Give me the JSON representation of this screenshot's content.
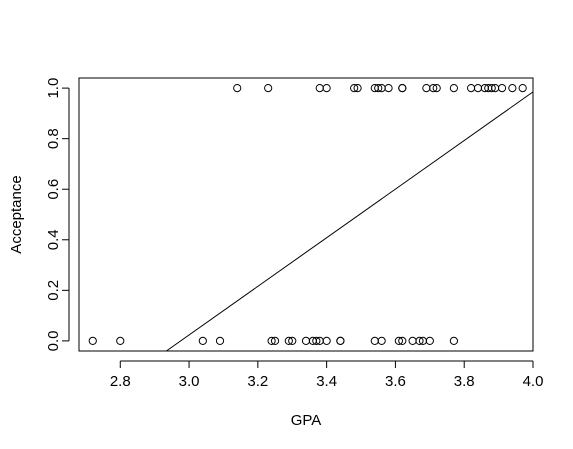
{
  "chart_data": {
    "type": "scatter",
    "title": "",
    "xlabel": "GPA",
    "ylabel": "Acceptance",
    "xlim": [
      2.68,
      4.0
    ],
    "ylim": [
      -0.04,
      1.04
    ],
    "xticks": [
      2.8,
      3.0,
      3.2,
      3.4,
      3.6,
      3.8,
      4.0
    ],
    "xtick_labels": [
      "2.8",
      "3.0",
      "3.2",
      "3.4",
      "3.6",
      "3.8",
      "4.0"
    ],
    "yticks": [
      0.0,
      0.2,
      0.4,
      0.6,
      0.8,
      1.0
    ],
    "ytick_labels": [
      "0.0",
      "0.2",
      "0.4",
      "0.6",
      "0.8",
      "1.0"
    ],
    "grid": false,
    "legend": "none",
    "series": [
      {
        "marker": "open-circle",
        "x": [
          2.72,
          2.8,
          3.04,
          3.09,
          3.24,
          3.25,
          3.29,
          3.3,
          3.34,
          3.36,
          3.37,
          3.38,
          3.4,
          3.44,
          3.44,
          3.54,
          3.56,
          3.61,
          3.62,
          3.65,
          3.67,
          3.68,
          3.7,
          3.77,
          3.14,
          3.23,
          3.38,
          3.4,
          3.48,
          3.49,
          3.54,
          3.55,
          3.56,
          3.58,
          3.62,
          3.62,
          3.69,
          3.71,
          3.72,
          3.77,
          3.82,
          3.84,
          3.86,
          3.87,
          3.88,
          3.89,
          3.91,
          3.94,
          3.97
        ],
        "y": [
          0,
          0,
          0,
          0,
          0,
          0,
          0,
          0,
          0,
          0,
          0,
          0,
          0,
          0,
          0,
          0,
          0,
          0,
          0,
          0,
          0,
          0,
          0,
          0,
          1,
          1,
          1,
          1,
          1,
          1,
          1,
          1,
          1,
          1,
          1,
          1,
          1,
          1,
          1,
          1,
          1,
          1,
          1,
          1,
          1,
          1,
          1,
          1,
          1
        ]
      }
    ],
    "fit_line": {
      "x": [
        2.934,
        4.0
      ],
      "y": [
        -0.04,
        0.985
      ]
    }
  }
}
